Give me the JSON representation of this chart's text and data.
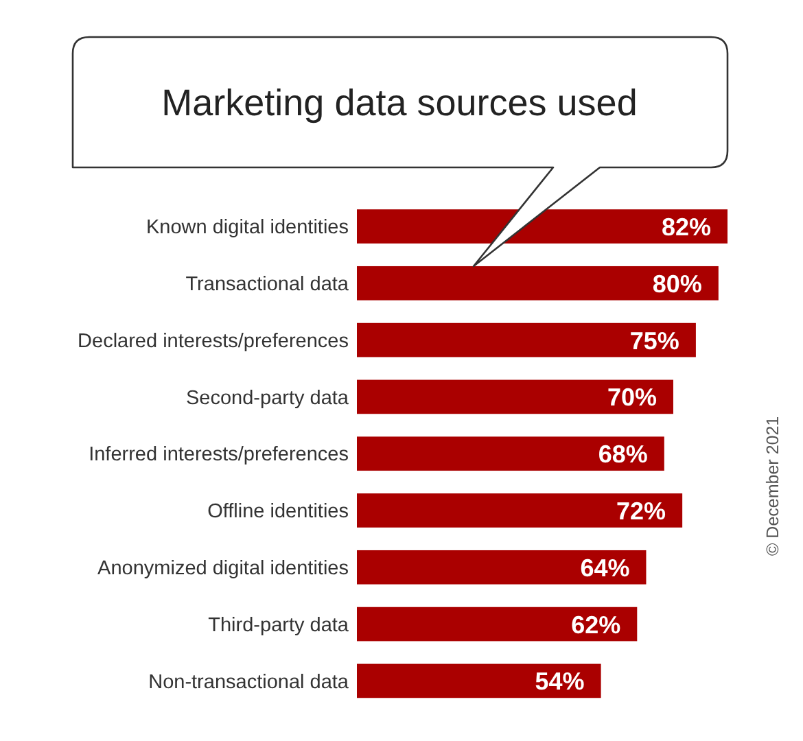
{
  "chart_data": {
    "type": "bar",
    "orientation": "horizontal",
    "title": "Marketing data sources used",
    "categories": [
      "Known digital identities",
      "Transactional data",
      "Declared interests/preferences",
      "Second-party data",
      "Inferred interests/preferences",
      "Offline identities",
      "Anonymized digital identities",
      "Third-party data",
      "Non-transactional data"
    ],
    "values": [
      82,
      80,
      75,
      70,
      68,
      72,
      64,
      62,
      54
    ],
    "value_labels": [
      "82%",
      "80%",
      "75%",
      "70%",
      "68%",
      "72%",
      "64%",
      "62%",
      "54%"
    ],
    "color": "#aa0000",
    "annotations": [
      "© December 2021"
    ]
  }
}
